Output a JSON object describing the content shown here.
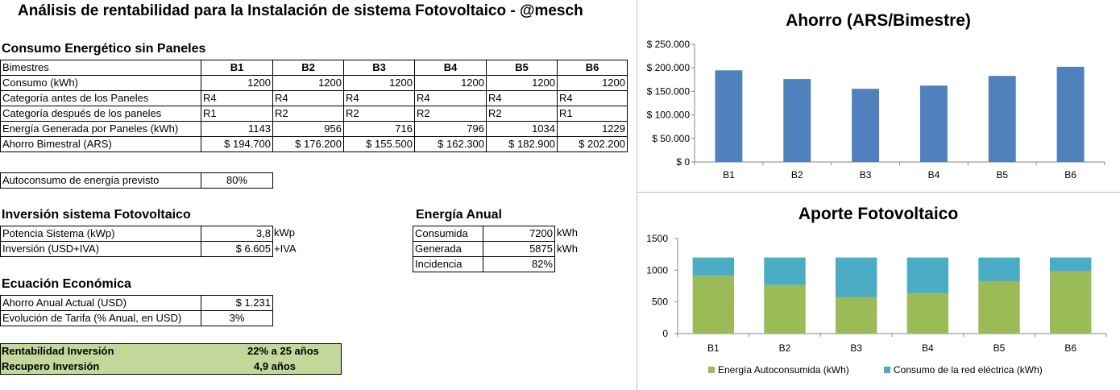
{
  "title": "Análisis de rentabilidad para la Instalación de sistema Fotovoltaico - @mesch",
  "consumo": {
    "heading": "Consumo Energético sin Paneles",
    "header_label": "Bimestres",
    "columns": [
      "B1",
      "B2",
      "B3",
      "B4",
      "B5",
      "B6"
    ],
    "rows": [
      {
        "label": "Consumo (kWh)",
        "cells": [
          "1200",
          "1200",
          "1200",
          "1200",
          "1200",
          "1200"
        ]
      },
      {
        "label": "Categoría antes de los Paneles",
        "cells": [
          "R4",
          "R4",
          "R4",
          "R4",
          "R4",
          "R4"
        ]
      },
      {
        "label": "Categoría después de los paneles",
        "cells": [
          "R1",
          "R2",
          "R2",
          "R2",
          "R2",
          "R1"
        ]
      },
      {
        "label": "Energía Generada por Paneles (kWh)",
        "cells": [
          "1143",
          "956",
          "716",
          "796",
          "1034",
          "1229"
        ]
      },
      {
        "label": "Ahorro Bimestral (ARS)",
        "cells": [
          "$ 194.700",
          "$ 176.200",
          "$ 155.500",
          "$ 162.300",
          "$ 182.900",
          "$ 202.200"
        ]
      }
    ]
  },
  "autoconsumo": {
    "label": "Autoconsumo de energía previsto",
    "value": "80%"
  },
  "inversion": {
    "heading": "Inversión sistema Fotovoltaico",
    "rows": [
      {
        "label": "Potencia Sistema (kWp)",
        "value": "3,8",
        "unit": "kWp"
      },
      {
        "label": "Inversión (USD+IVA)",
        "value": "$ 6.605",
        "unit": "+IVA"
      }
    ]
  },
  "energia_anual": {
    "heading": "Energía Anual",
    "rows": [
      {
        "label": "Consumida",
        "value": "7200",
        "unit": "kWh"
      },
      {
        "label": "Generada",
        "value": "5875",
        "unit": "kWh"
      },
      {
        "label": "Incidencia",
        "value": "82%",
        "unit": ""
      }
    ]
  },
  "ecuacion": {
    "heading": "Ecuación Económica",
    "rows": [
      {
        "label": "Ahorro Anual Actual (USD)",
        "value": "$ 1.231"
      },
      {
        "label": "Evolución de Tarifa (% Anual, en USD)",
        "value": "3%"
      }
    ]
  },
  "resultado": {
    "rows": [
      {
        "label": "Rentabilidad Inversión",
        "value": "22% a 25 años"
      },
      {
        "label": "Recupero Inversión",
        "value": "4,9 años"
      }
    ]
  },
  "chart_data": [
    {
      "type": "bar",
      "title": "Ahorro (ARS/Bimestre)",
      "categories": [
        "B1",
        "B2",
        "B3",
        "B4",
        "B5",
        "B6"
      ],
      "values": [
        194700,
        176200,
        155500,
        162300,
        182900,
        202200
      ],
      "ylim": [
        0,
        250000
      ],
      "yticks": [
        0,
        50000,
        100000,
        150000,
        200000,
        250000
      ],
      "ytick_labels": [
        "$ 0",
        "$ 50.000",
        "$ 100.000",
        "$ 150.000",
        "$ 200.000",
        "$ 250.000"
      ],
      "color": "#4f81bd",
      "grid": false
    },
    {
      "type": "bar",
      "stacked": true,
      "title": "Aporte Fotovoltaico",
      "categories": [
        "B1",
        "B2",
        "B3",
        "B4",
        "B5",
        "B6"
      ],
      "series": [
        {
          "name": "Energía Autoconsumida (kWh)",
          "values": [
            914,
            765,
            573,
            637,
            827,
            983
          ],
          "color": "#9bbb59"
        },
        {
          "name": "Consumo de la red eléctrica (kWh)",
          "values": [
            286,
            435,
            627,
            563,
            373,
            217
          ],
          "color": "#4bacc6"
        }
      ],
      "ylim": [
        0,
        1500
      ],
      "yticks": [
        0,
        500,
        1000,
        1500
      ],
      "ytick_labels": [
        "0",
        "500",
        "1000",
        "1500"
      ],
      "legend": "bottom",
      "grid": false
    }
  ]
}
